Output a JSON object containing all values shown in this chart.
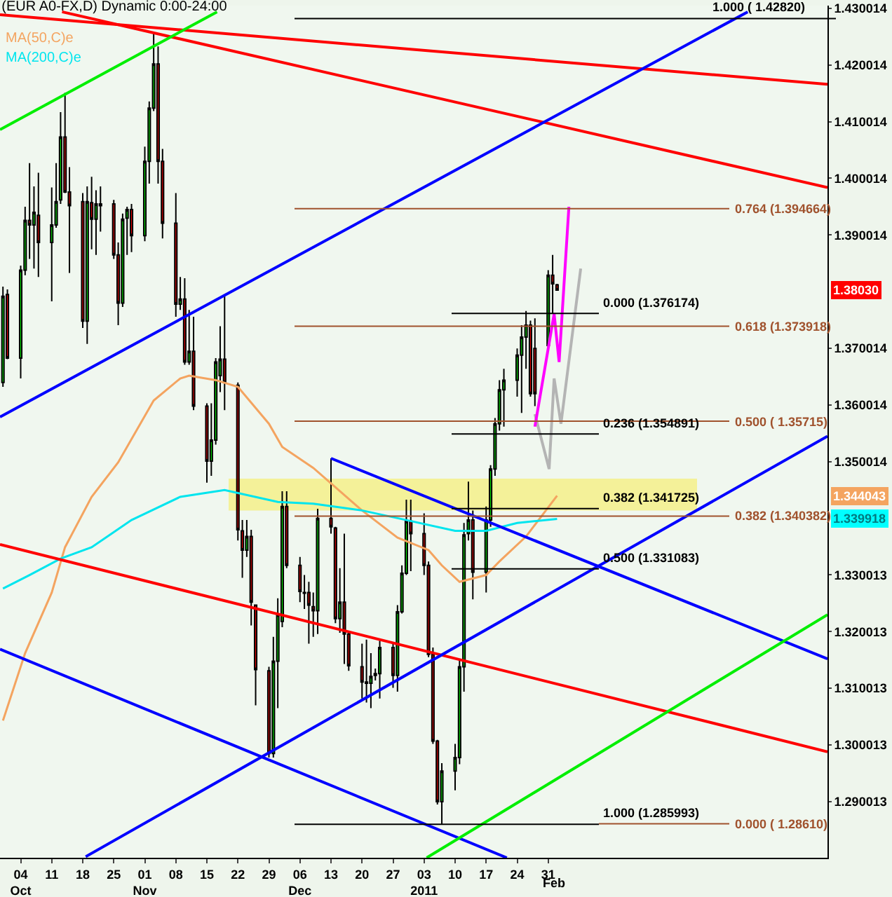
{
  "chart_data": {
    "type": "candlestick",
    "title": "(EUR A0-FX,D) Dynamic 0:00-24:00",
    "legend": "top left",
    "x": [
      "2010-09-30",
      "2010-10-01",
      "2010-10-04",
      "2010-10-05",
      "2010-10-06",
      "2010-10-07",
      "2010-10-08",
      "2010-10-11",
      "2010-10-12",
      "2010-10-13",
      "2010-10-14",
      "2010-10-15",
      "2010-10-18",
      "2010-10-19",
      "2010-10-20",
      "2010-10-21",
      "2010-10-22",
      "2010-10-25",
      "2010-10-26",
      "2010-10-27",
      "2010-10-28",
      "2010-10-29",
      "2010-11-01",
      "2010-11-02",
      "2010-11-03",
      "2010-11-04",
      "2010-11-05",
      "2010-11-08",
      "2010-11-09",
      "2010-11-10",
      "2010-11-11",
      "2010-11-12",
      "2010-11-15",
      "2010-11-16",
      "2010-11-17",
      "2010-11-18",
      "2010-11-19",
      "2010-11-22",
      "2010-11-23",
      "2010-11-24",
      "2010-11-25",
      "2010-11-26",
      "2010-11-29",
      "2010-11-30",
      "2010-12-01",
      "2010-12-02",
      "2010-12-03",
      "2010-12-06",
      "2010-12-07",
      "2010-12-08",
      "2010-12-09",
      "2010-12-10",
      "2010-12-13",
      "2010-12-14",
      "2010-12-15",
      "2010-12-16",
      "2010-12-17",
      "2010-12-20",
      "2010-12-21",
      "2010-12-22",
      "2010-12-23",
      "2010-12-24",
      "2010-12-27",
      "2010-12-28",
      "2010-12-29",
      "2010-12-30",
      "2010-12-31",
      "2011-01-03",
      "2011-01-04",
      "2011-01-05",
      "2011-01-06",
      "2011-01-07",
      "2011-01-10",
      "2011-01-11",
      "2011-01-12",
      "2011-01-13",
      "2011-01-14",
      "2011-01-17",
      "2011-01-18",
      "2011-01-19",
      "2011-01-20",
      "2011-01-21",
      "2011-01-24",
      "2011-01-25",
      "2011-01-26",
      "2011-01-27",
      "2011-01-28",
      "2011-01-31",
      "2011-02-01",
      "2011-02-02"
    ],
    "ohlc": [
      [
        1.364,
        1.3809,
        1.3632,
        1.3792
      ],
      [
        1.3795,
        1.3804,
        1.3681,
        1.3683
      ],
      [
        1.3683,
        1.3846,
        1.3647,
        1.3838
      ],
      [
        1.3838,
        1.395,
        1.3829,
        1.3926
      ],
      [
        1.3926,
        1.4027,
        1.3858,
        1.3918
      ],
      [
        1.3918,
        1.3986,
        1.3841,
        1.394
      ],
      [
        1.3935,
        1.401,
        1.3826,
        1.3887
      ],
      [
        1.3887,
        1.3984,
        1.3783,
        1.3918
      ],
      [
        1.3918,
        1.4027,
        1.3913,
        1.3959
      ],
      [
        1.3962,
        1.4117,
        1.3955,
        1.4073
      ],
      [
        1.4073,
        1.4151,
        1.3974,
        1.3976
      ],
      [
        1.3976,
        1.402,
        1.3833,
        1.3952
      ],
      [
        1.3959,
        1.3974,
        1.3736,
        1.3748
      ],
      [
        1.3748,
        1.3986,
        1.3708,
        1.3959
      ],
      [
        1.3957,
        1.4003,
        1.3875,
        1.3928
      ],
      [
        1.3928,
        1.3979,
        1.3865,
        1.3955
      ],
      [
        1.3955,
        1.3986,
        1.3906,
        1.3952
      ],
      [
        1.3955,
        1.3962,
        1.3858,
        1.3865
      ],
      [
        1.3865,
        1.3887,
        1.3741,
        1.378
      ],
      [
        1.378,
        1.3938,
        1.3773,
        1.3928
      ],
      [
        1.393,
        1.395,
        1.3865,
        1.3945
      ],
      [
        1.3945,
        1.3955,
        1.387,
        1.3899
      ],
      [
        1.3899,
        1.4056,
        1.3889,
        1.403
      ],
      [
        1.403,
        1.4136,
        1.3991,
        1.4124
      ],
      [
        1.4124,
        1.4258,
        1.4119,
        1.4202
      ],
      [
        1.4202,
        1.4233,
        1.3991,
        1.403
      ],
      [
        1.403,
        1.4052,
        1.3894,
        1.3921
      ],
      [
        1.3921,
        1.3974,
        1.3756,
        1.3778
      ],
      [
        1.3778,
        1.3826,
        1.3768,
        1.3787
      ],
      [
        1.3787,
        1.3824,
        1.3671,
        1.3676
      ],
      [
        1.3676,
        1.3768,
        1.3671,
        1.3695
      ],
      [
        1.3695,
        1.3756,
        1.3591,
        1.3598
      ],
      [
        1.3598,
        1.3603,
        1.3463,
        1.3501
      ],
      [
        1.3501,
        1.3603,
        1.3475,
        1.3538
      ],
      [
        1.3538,
        1.3683,
        1.353,
        1.3676
      ],
      [
        1.3652,
        1.3739,
        1.3623,
        1.3681
      ],
      [
        1.3681,
        1.3792,
        1.3591,
        1.364
      ],
      [
        1.3635,
        1.364,
        1.3361,
        1.338
      ],
      [
        1.3378,
        1.3397,
        1.3295,
        1.3344
      ],
      [
        1.3344,
        1.3397,
        1.3332,
        1.3368
      ],
      [
        1.3368,
        1.338,
        1.3211,
        1.3252
      ],
      [
        1.3247,
        1.3247,
        1.307,
        1.3133
      ],
      [
        1.3131,
        1.3138,
        1.2978,
        1.2985
      ],
      [
        1.2985,
        1.3191,
        1.2978,
        1.3148
      ],
      [
        1.3148,
        1.3259,
        1.3065,
        1.323
      ],
      [
        1.3218,
        1.3448,
        1.3208,
        1.3421
      ],
      [
        1.3421,
        1.3448,
        1.3312,
        1.3317
      ],
      [
        1.3317,
        1.3332,
        1.3252,
        1.3271
      ],
      [
        1.3269,
        1.33,
        1.324,
        1.3268
      ],
      [
        1.3269,
        1.3288,
        1.3179,
        1.3247
      ],
      [
        1.3244,
        1.3269,
        1.3191,
        1.3237
      ],
      [
        1.3237,
        1.3417,
        1.3196,
        1.34
      ],
      [
        1.34,
        1.3506,
        1.3373,
        1.3385
      ],
      [
        1.3383,
        1.3385,
        1.3215,
        1.3223
      ],
      [
        1.3223,
        1.3312,
        1.3198,
        1.3252
      ],
      [
        1.3252,
        1.3373,
        1.3143,
        1.3196
      ],
      [
        1.3196,
        1.3198,
        1.3131,
        1.314
      ],
      [
        1.3138,
        1.3179,
        1.3082,
        1.3111
      ],
      [
        1.3111,
        1.3186,
        1.3075,
        1.3109
      ],
      [
        1.3109,
        1.3162,
        1.3065,
        1.3121
      ],
      [
        1.3123,
        1.3135,
        1.3114,
        1.3126
      ],
      [
        1.3126,
        1.3184,
        1.3082,
        1.3172
      ],
      [
        1.3172,
        1.3179,
        1.3101,
        1.3123
      ],
      [
        1.3123,
        1.3247,
        1.3094,
        1.3235
      ],
      [
        1.3235,
        1.3317,
        1.3232,
        1.3303
      ],
      [
        1.3303,
        1.3433,
        1.33,
        1.3395
      ],
      [
        1.3395,
        1.3433,
        1.3307,
        1.3373
      ],
      [
        1.3373,
        1.3409,
        1.33,
        1.3317
      ],
      [
        1.3317,
        1.3324,
        1.3155,
        1.316
      ],
      [
        1.316,
        1.3172,
        1.3002,
        1.3007
      ],
      [
        1.3007,
        1.3009,
        1.2895,
        1.29
      ],
      [
        1.29,
        1.2968,
        1.286,
        1.2954
      ],
      [
        1.2954,
        1.3002,
        1.292,
        1.2978
      ],
      [
        1.2978,
        1.315,
        1.2966,
        1.3138
      ],
      [
        1.3138,
        1.3392,
        1.3094,
        1.3371
      ],
      [
        1.3373,
        1.3465,
        1.3361,
        1.3397
      ],
      [
        1.3397,
        1.3414,
        1.3257,
        1.3305
      ],
      [
        1.3305,
        1.3421,
        1.3269,
        1.3397
      ],
      [
        1.3397,
        1.3494,
        1.3385,
        1.3487
      ],
      [
        1.3487,
        1.3577,
        1.3475,
        1.3567
      ],
      [
        1.3567,
        1.3644,
        1.3555,
        1.3627
      ],
      [
        1.3627,
        1.3664,
        1.3562,
        1.3644
      ],
      [
        1.3644,
        1.37,
        1.3615,
        1.3688
      ],
      [
        1.3688,
        1.3741,
        1.3586,
        1.372
      ],
      [
        1.372,
        1.3766,
        1.3664,
        1.3741
      ],
      [
        1.3741,
        1.3749,
        1.3615,
        1.362
      ],
      [
        1.37,
        1.3753,
        1.3598,
        1.362
      ],
      [
        1.3705,
        1.3838,
        1.3698,
        1.3829
      ],
      [
        1.3829,
        1.3865,
        1.3761,
        1.3814
      ],
      [
        1.3812,
        1.3814,
        1.3803,
        1.3803
      ]
    ],
    "series": [
      {
        "type": "line",
        "name": "MA(50,C)e",
        "color": "#f4a460",
        "x": [
          "2010-09-30",
          "2010-10-05",
          "2010-10-11",
          "2010-10-14",
          "2010-10-20",
          "2010-10-26",
          "2010-11-03",
          "2010-11-09",
          "2010-11-11",
          "2010-11-17",
          "2010-11-22",
          "2010-11-29",
          "2010-12-02",
          "2010-12-09",
          "2010-12-20",
          "2010-12-28",
          "2011-01-04",
          "2011-01-07",
          "2011-01-11",
          "2011-01-17",
          "2011-01-20",
          "2011-01-26",
          "2011-02-02"
        ],
        "values": [
          1.3043,
          1.3162,
          1.3269,
          1.3349,
          1.3438,
          1.3499,
          1.3608,
          1.3647,
          1.3652,
          1.3644,
          1.3632,
          1.3567,
          1.3526,
          1.3489,
          1.3414,
          1.3366,
          1.3344,
          1.3317,
          1.3288,
          1.33,
          1.3324,
          1.3368,
          1.344
        ]
      },
      {
        "type": "line",
        "name": "MA(200,C)e",
        "color": "#00e5ee",
        "x": [
          "2010-09-30",
          "2010-10-06",
          "2010-10-13",
          "2010-10-20",
          "2010-10-29",
          "2010-11-09",
          "2010-11-19",
          "2010-12-01",
          "2010-12-09",
          "2010-12-20",
          "2010-12-30",
          "2011-01-10",
          "2011-01-17",
          "2011-01-24",
          "2011-02-02"
        ],
        "values": [
          1.3276,
          1.33,
          1.3329,
          1.3349,
          1.3397,
          1.3438,
          1.345,
          1.3429,
          1.3426,
          1.3414,
          1.3397,
          1.3378,
          1.3378,
          1.3392,
          1.3399
        ]
      },
      {
        "type": "line",
        "color": "#ff0000",
        "x": [
          "2010-09-29T08:00",
          "2011-04-04"
        ],
        "values": [
          1.4289,
          1.4166
        ]
      },
      {
        "type": "line",
        "color": "#ff0000",
        "x": [
          "2010-10-13T08:00",
          "2011-04-04"
        ],
        "values": [
          1.4294,
          1.3984
        ]
      },
      {
        "type": "line",
        "color": "#ff0000",
        "x": [
          "2010-09-29T08:00",
          "2011-04-04"
        ],
        "values": [
          1.3354,
          1.2988
        ]
      },
      {
        "type": "line",
        "color": "#0000ff",
        "x": [
          "2010-09-29T08:00",
          "2011-03-17"
        ],
        "values": [
          1.3579,
          1.4294
        ]
      },
      {
        "type": "line",
        "color": "#0000ff",
        "x": [
          "2010-10-18T16:00",
          "2011-04-04"
        ],
        "values": [
          1.2803,
          1.3545
        ]
      },
      {
        "type": "line",
        "color": "#0000ff",
        "x": [
          "2010-12-13",
          "2011-04-04"
        ],
        "values": [
          1.3506,
          1.3152
        ]
      },
      {
        "type": "line",
        "color": "#0000ff",
        "x": [
          "2010-09-29T08:00",
          "2011-01-21T16:00"
        ],
        "values": [
          1.3169,
          1.2801
        ]
      },
      {
        "type": "line",
        "color": "#00ee00",
        "x": [
          "2010-09-29T08:00",
          "2010-11-17T07:00"
        ],
        "values": [
          1.4086,
          1.4294
        ]
      },
      {
        "type": "line",
        "color": "#00ee00",
        "x": [
          "2011-01-03T14:00",
          "2011-04-04"
        ],
        "values": [
          1.2801,
          1.323
        ]
      },
      {
        "type": "line",
        "color": "#b4b4b4",
        "x": [
          "2011-01-28",
          "2011-01-31T05:00",
          "2011-02-01T08:00",
          "2011-02-02T21:00",
          "2011-02-07T08:00"
        ],
        "values": [
          1.3584,
          1.3487,
          1.3647,
          1.3567,
          1.3841
        ]
      },
      {
        "type": "line",
        "color": "#ff00ff",
        "x": [
          "2011-01-28",
          "2011-02-01T08:00",
          "2011-02-02T11:00",
          "2011-02-04T16:00"
        ],
        "values": [
          1.3562,
          1.3761,
          1.3676,
          1.395
        ]
      }
    ],
    "ref_lines": [
      {
        "axis": "y",
        "value": 1.4282,
        "label": "1.000 ( 1.42820)",
        "color": "#000000"
      },
      {
        "axis": "y",
        "value": 1.394664,
        "label": "0.764 (1.394664)",
        "color": "#a0522d"
      },
      {
        "axis": "y",
        "value": 1.373918,
        "label": "0.618 (1.373918)",
        "color": "#a0522d"
      },
      {
        "axis": "y",
        "value": 1.35715,
        "label": "0.500 ( 1.35715)",
        "color": "#a0522d"
      },
      {
        "axis": "y",
        "value": 1.340382,
        "label": "0.382 (1.340382)",
        "color": "#a0522d"
      },
      {
        "axis": "y",
        "value": 1.2861,
        "label": "0.000 ( 1.28610)",
        "color": "#a0522d"
      },
      {
        "axis": "y",
        "value": 1.376174,
        "label": "0.000 (1.376174)",
        "color": "#000000"
      },
      {
        "axis": "y",
        "value": 1.354891,
        "label": "0.236 (1.354891)",
        "color": "#000000"
      },
      {
        "axis": "y",
        "value": 1.341725,
        "label": "0.382 (1.341725)",
        "color": "#000000"
      },
      {
        "axis": "y",
        "value": 1.331083,
        "label": "0.500 (1.331083)",
        "color": "#000000"
      },
      {
        "axis": "y",
        "value": 1.285993,
        "label": "1.000 (1.285993)",
        "color": "#000000"
      }
    ],
    "bands": [
      {
        "axis": "y",
        "from": 1.3414,
        "to": 1.347,
        "color": "#f5f08a"
      }
    ],
    "annotations": [
      {
        "text": "1.38030",
        "y": 1.3803
      },
      {
        "text": "1.344043",
        "y": 1.344
      },
      {
        "text": "1.339918",
        "y": 1.3399
      },
      "Feb"
    ],
    "xlim": [
      "2010-09-29T08:00",
      "2011-04-04"
    ],
    "xticks": [
      {
        "value": "2010-10-04",
        "label": "04\nOct"
      },
      {
        "value": "2010-10-11",
        "label": "11"
      },
      {
        "value": "2010-10-18",
        "label": "18"
      },
      {
        "value": "2010-10-25",
        "label": "25"
      },
      {
        "value": "2010-11-01",
        "label": "01\nNov"
      },
      {
        "value": "2010-11-08",
        "label": "08"
      },
      {
        "value": "2010-11-15",
        "label": "15"
      },
      {
        "value": "2010-11-22",
        "label": "22"
      },
      {
        "value": "2010-11-29",
        "label": "29"
      },
      {
        "value": "2010-12-06",
        "label": "06\nDec"
      },
      {
        "value": "2010-12-13",
        "label": "13"
      },
      {
        "value": "2010-12-20",
        "label": "20"
      },
      {
        "value": "2010-12-27",
        "label": "27"
      },
      {
        "value": "2011-01-03",
        "label": "03\n2011"
      },
      {
        "value": "2011-01-10",
        "label": "10"
      },
      {
        "value": "2011-01-17",
        "label": "17"
      },
      {
        "value": "2011-01-24",
        "label": "24"
      },
      {
        "value": "2011-01-31",
        "label": "31"
      }
    ],
    "ylim": [
      1.2801,
      1.4305
    ],
    "yticks": [
      1.430014,
      1.420014,
      1.410014,
      1.400014,
      1.390014,
      1.370014,
      1.360014,
      1.350014,
      1.330013,
      1.320013,
      1.310013,
      1.300013,
      1.290013
    ]
  }
}
